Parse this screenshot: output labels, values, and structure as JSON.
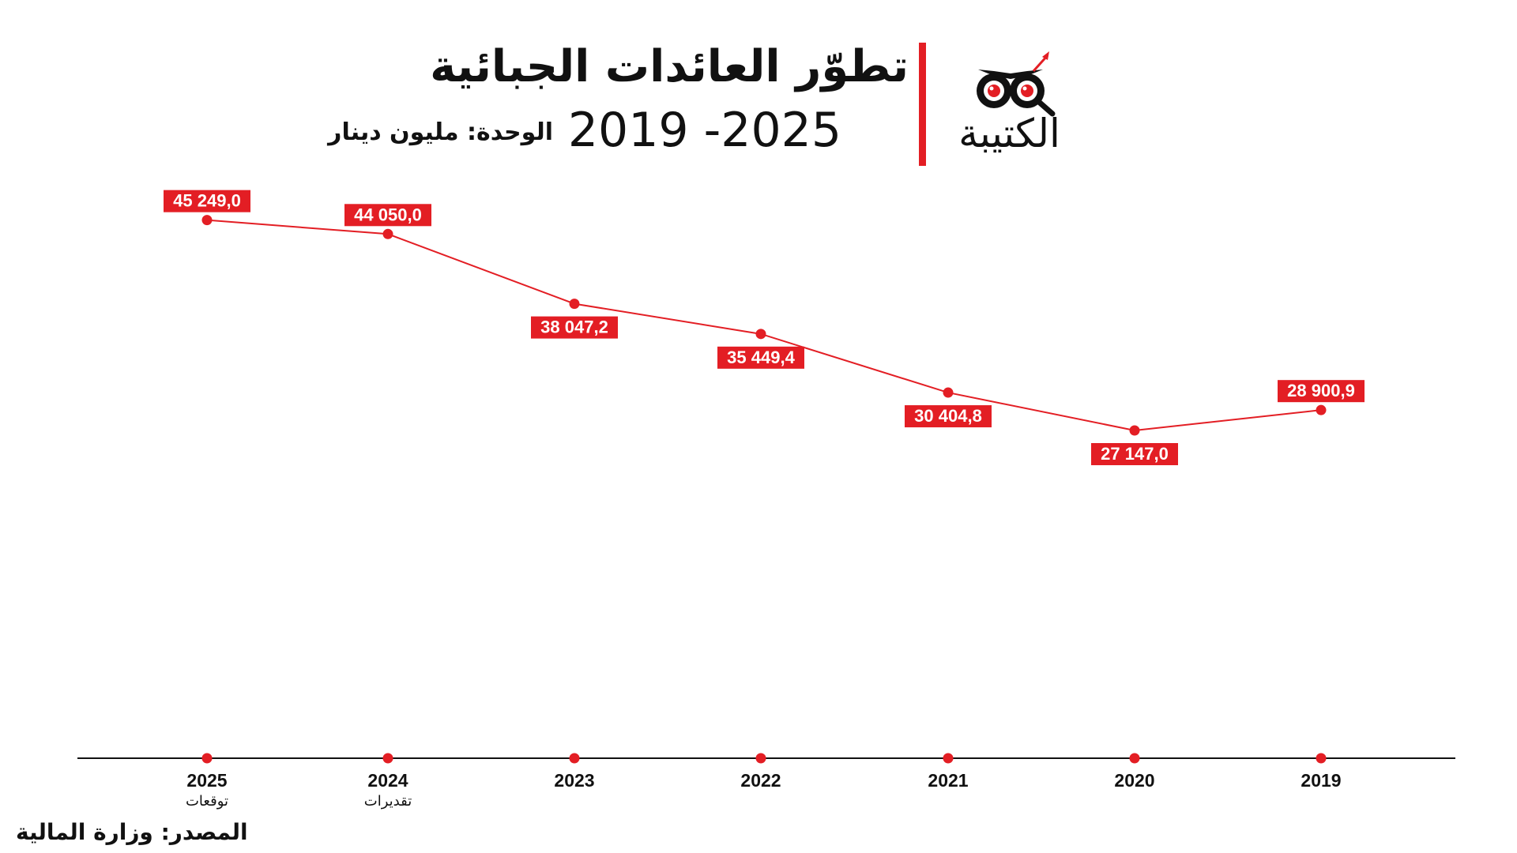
{
  "header": {
    "title": "تطوّر العائدات الجبائية",
    "years": "2019 -2025",
    "unit": "الوحدة: مليون دينار"
  },
  "logo": {
    "text": "الكتيبة",
    "icon": "binoculars-magnifier-icon"
  },
  "source": "المصدر: وزارة المالية",
  "colors": {
    "accent": "#e31e24",
    "axis": "#111111",
    "label_text": "#ffffff"
  },
  "chart_data": {
    "type": "line",
    "title": "تطوّر العائدات الجبائية",
    "subtitle": "2019 -2025",
    "unit": "الوحدة: مليون دينار",
    "x": [
      "2025",
      "2024",
      "2023",
      "2022",
      "2021",
      "2020",
      "2019"
    ],
    "x_notes": [
      "توقعات",
      "تقديرات",
      "",
      "",
      "",
      "",
      ""
    ],
    "x_direction": "right-to-left",
    "series": [
      {
        "values": [
          45249.0,
          44050.0,
          38047.2,
          35449.4,
          30404.8,
          27147.0,
          28900.9
        ],
        "labels": [
          "45 249,0",
          "44 050,0",
          "38 047,2",
          "35 449,4",
          "30 404,8",
          "27 147,0",
          "28 900,9"
        ],
        "label_placement": [
          "above",
          "above",
          "below",
          "below",
          "below",
          "below",
          "above"
        ]
      }
    ],
    "grid": false,
    "legend": "none"
  }
}
